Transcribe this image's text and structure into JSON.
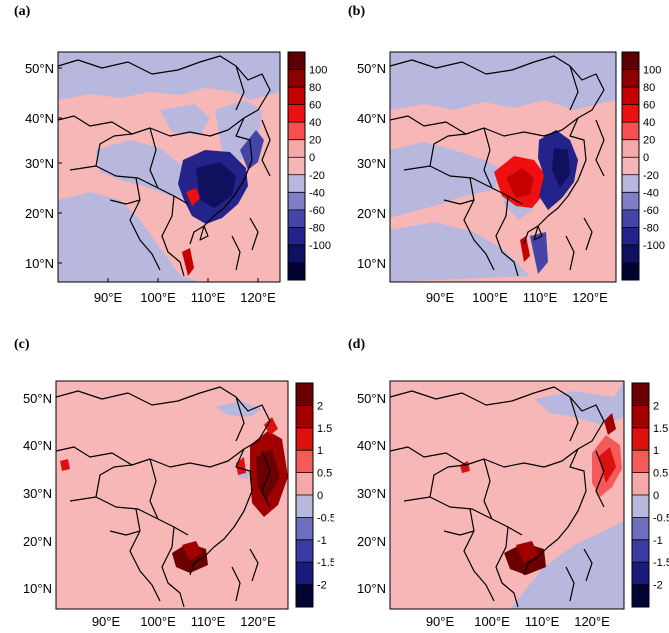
{
  "panels": [
    {
      "id": "a",
      "label": "(a)",
      "lat_ticks": [
        "50°N",
        "40°N",
        "30°N",
        "20°N",
        "10°N"
      ],
      "lon_ticks": [
        "90°E",
        "100°E",
        "110°E",
        "120°E"
      ],
      "colorbar": {
        "levels": [
          "100",
          "80",
          "60",
          "40",
          "20",
          "0",
          "-20",
          "-40",
          "-60",
          "-80",
          "-100"
        ],
        "colors": [
          "#5a0000",
          "#8b0000",
          "#c40000",
          "#ee1010",
          "#f65050",
          "#f7a8a8",
          "#f4b6b6",
          "#b8b8de",
          "#7f7fc6",
          "#4545a8",
          "#23238a",
          "#10105e",
          "#020230"
        ]
      }
    },
    {
      "id": "b",
      "label": "(b)",
      "lat_ticks": [
        "50°N",
        "40°N",
        "30°N",
        "20°N",
        "10°N"
      ],
      "lon_ticks": [
        "90°E",
        "100°E",
        "110°E",
        "120°E"
      ],
      "colorbar": {
        "levels": [
          "100",
          "80",
          "60",
          "40",
          "20",
          "0",
          "-20",
          "-40",
          "-60",
          "-80",
          "-100"
        ],
        "colors": [
          "#5a0000",
          "#8b0000",
          "#c40000",
          "#ee1010",
          "#f65050",
          "#f7a8a8",
          "#f4b6b6",
          "#b8b8de",
          "#7f7fc6",
          "#4545a8",
          "#23238a",
          "#10105e",
          "#020230"
        ]
      }
    },
    {
      "id": "c",
      "label": "(c)",
      "lat_ticks": [
        "50°N",
        "40°N",
        "30°N",
        "20°N",
        "10°N"
      ],
      "lon_ticks": [
        "90°E",
        "100°E",
        "110°E",
        "120°E"
      ],
      "colorbar": {
        "levels": [
          "2",
          "1.5",
          "1",
          "0.5",
          "0",
          "-0.5",
          "-1",
          "-1.5",
          "-2"
        ],
        "colors": [
          "#6a0000",
          "#a00000",
          "#dd1010",
          "#f45a5a",
          "#f7a8a8",
          "#b8b8de",
          "#6e6ebe",
          "#3a3aa2",
          "#1a1a7a",
          "#040436"
        ]
      }
    },
    {
      "id": "d",
      "label": "(d)",
      "lat_ticks": [
        "50°N",
        "40°N",
        "30°N",
        "20°N",
        "10°N"
      ],
      "lon_ticks": [
        "90°E",
        "100°E",
        "110°E",
        "120°E"
      ],
      "colorbar": {
        "levels": [
          "2",
          "1.5",
          "1",
          "0.5",
          "0",
          "-0.5",
          "-1",
          "-1.5",
          "-2"
        ],
        "colors": [
          "#6a0000",
          "#a00000",
          "#dd1010",
          "#f45a5a",
          "#f7a8a8",
          "#b8b8de",
          "#6e6ebe",
          "#3a3aa2",
          "#1a1a7a",
          "#040436"
        ]
      }
    }
  ],
  "colors": {
    "background_pink": "#f7b7b7",
    "background_lavender": "#b8b8de",
    "border_line": "#000000"
  }
}
